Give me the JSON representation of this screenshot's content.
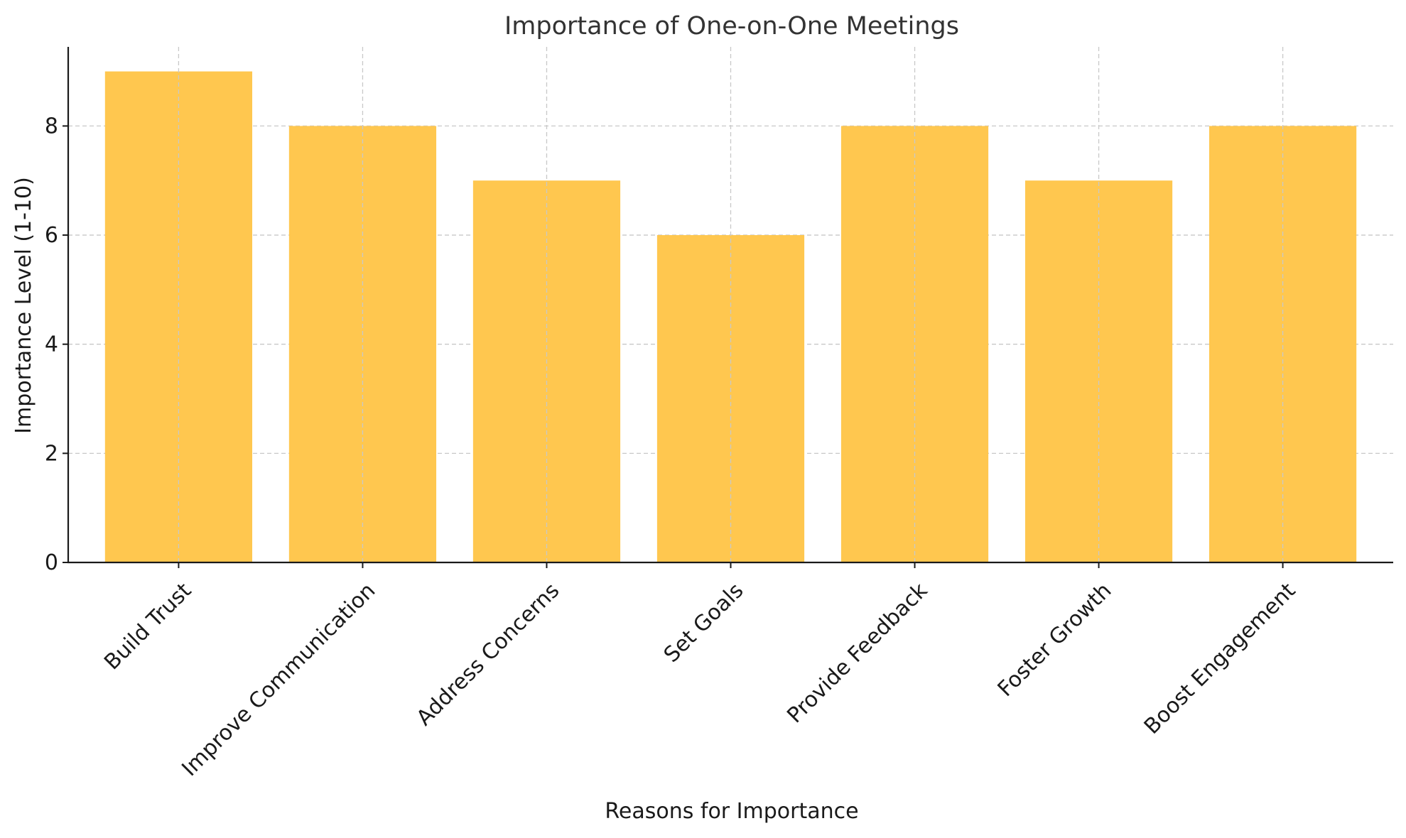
{
  "chart_data": {
    "type": "bar",
    "title": "Importance of One-on-One Meetings",
    "xlabel": "Reasons for Importance",
    "ylabel": "Importance Level (1-10)",
    "categories": [
      "Build Trust",
      "Improve Communication",
      "Address Concerns",
      "Set Goals",
      "Provide Feedback",
      "Foster Growth",
      "Boost Engagement"
    ],
    "values": [
      9,
      8,
      7,
      6,
      8,
      7,
      8
    ],
    "ylim": [
      0,
      9.45
    ],
    "yticks": [
      0,
      2,
      4,
      6,
      8
    ],
    "grid": true,
    "bar_color": "#FFC74F"
  }
}
